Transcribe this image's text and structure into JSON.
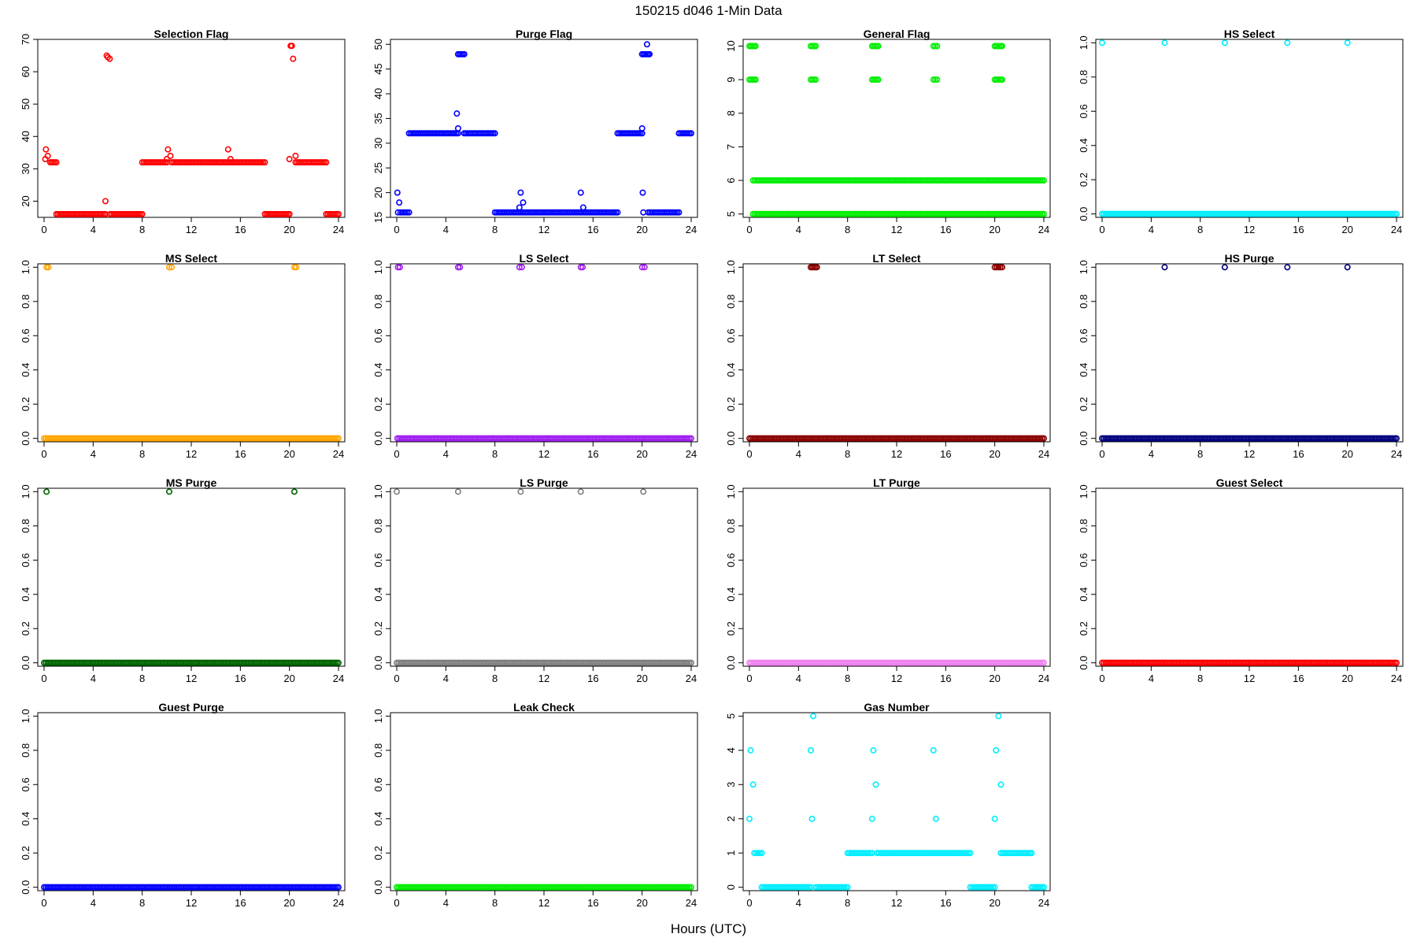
{
  "figure": {
    "title": "150215   d046   1-Min Data",
    "xlabel": "Hours (UTC)"
  },
  "x_ticks": [
    0,
    4,
    8,
    12,
    16,
    20,
    24
  ],
  "xlim": [
    0,
    24
  ],
  "chart_data": [
    {
      "type": "scatter",
      "title": "Selection Flag",
      "color": "#ff0000",
      "ylim": [
        15,
        70
      ],
      "yticks": [
        20,
        30,
        40,
        50,
        60,
        70
      ],
      "runs": [
        [
          0.5,
          1.0,
          32
        ],
        [
          1.0,
          5.0,
          16
        ],
        [
          5.4,
          8.0,
          16
        ],
        [
          8.0,
          10.0,
          32
        ],
        [
          10.4,
          18.0,
          32
        ],
        [
          18.0,
          20.0,
          16
        ],
        [
          20.5,
          23.0,
          32
        ],
        [
          23.0,
          24.0,
          16
        ]
      ],
      "points": [
        [
          0.1,
          33
        ],
        [
          0.15,
          36
        ],
        [
          0.3,
          34
        ],
        [
          5.0,
          20
        ],
        [
          5.1,
          65
        ],
        [
          5.2,
          64.5
        ],
        [
          5.35,
          64
        ],
        [
          10.0,
          33
        ],
        [
          10.1,
          36
        ],
        [
          10.3,
          34
        ],
        [
          15.0,
          36
        ],
        [
          15.2,
          33
        ],
        [
          20.0,
          33
        ],
        [
          20.1,
          68
        ],
        [
          20.2,
          68
        ],
        [
          20.3,
          64
        ],
        [
          20.5,
          34
        ]
      ]
    },
    {
      "type": "scatter",
      "title": "Purge Flag",
      "color": "#0000ff",
      "ylim": [
        15,
        51
      ],
      "yticks": [
        15,
        20,
        25,
        30,
        35,
        40,
        45,
        50
      ],
      "runs": [
        [
          0.3,
          1.0,
          16
        ],
        [
          1.0,
          5.0,
          32
        ],
        [
          5.0,
          5.5,
          48
        ],
        [
          5.5,
          8.0,
          32
        ],
        [
          8.0,
          18.0,
          16
        ],
        [
          18.0,
          20.0,
          32
        ],
        [
          20.0,
          20.5,
          48
        ],
        [
          20.5,
          23.0,
          16
        ],
        [
          23.0,
          24.0,
          32
        ]
      ],
      "points": [
        [
          0.05,
          20
        ],
        [
          0.2,
          18
        ],
        [
          0.1,
          16
        ],
        [
          4.9,
          36
        ],
        [
          5.0,
          33
        ],
        [
          10.0,
          17
        ],
        [
          10.1,
          20
        ],
        [
          10.3,
          18
        ],
        [
          15.0,
          20
        ],
        [
          15.2,
          17
        ],
        [
          20.0,
          33
        ],
        [
          20.05,
          20
        ],
        [
          20.1,
          16
        ],
        [
          20.4,
          50
        ],
        [
          20.6,
          48
        ]
      ]
    },
    {
      "type": "scatter",
      "title": "General Flag",
      "color": "#00ee00",
      "ylim": [
        4.9,
        10.2
      ],
      "yticks": [
        5,
        6,
        7,
        8,
        9,
        10
      ],
      "runs": [
        [
          0.3,
          24.0,
          5
        ],
        [
          0.3,
          24.0,
          6
        ],
        [
          0.0,
          0.5,
          10
        ],
        [
          0.0,
          0.5,
          9
        ],
        [
          5.0,
          5.4,
          10
        ],
        [
          5.0,
          5.4,
          9
        ],
        [
          10.0,
          10.5,
          10
        ],
        [
          10.0,
          10.5,
          9
        ],
        [
          15.0,
          15.3,
          10
        ],
        [
          15.0,
          15.3,
          9
        ],
        [
          20.0,
          20.5,
          10
        ],
        [
          20.0,
          20.5,
          9
        ]
      ],
      "points": [
        [
          20.6,
          10
        ],
        [
          20.6,
          9
        ]
      ]
    },
    {
      "type": "scatter",
      "title": "HS Select",
      "color": "#00eeff",
      "ylim": [
        -0.02,
        1.02
      ],
      "yticks": [
        0.0,
        0.2,
        0.4,
        0.6,
        0.8,
        1.0
      ],
      "runs": [
        [
          0.0,
          24.0,
          0
        ]
      ],
      "points": [
        [
          0.0,
          1
        ],
        [
          5.1,
          1
        ],
        [
          10.0,
          1
        ],
        [
          15.1,
          1
        ],
        [
          20.0,
          1
        ]
      ]
    },
    {
      "type": "scatter",
      "title": "MS Select",
      "color": "#ffa500",
      "ylim": [
        -0.02,
        1.02
      ],
      "yticks": [
        0.0,
        0.2,
        0.4,
        0.6,
        0.8,
        1.0
      ],
      "runs": [
        [
          0.0,
          24.0,
          0
        ]
      ],
      "points": [
        [
          0.2,
          1
        ],
        [
          0.35,
          1
        ],
        [
          10.2,
          1
        ],
        [
          10.4,
          1
        ],
        [
          20.4,
          1
        ],
        [
          20.55,
          1
        ]
      ]
    },
    {
      "type": "scatter",
      "title": "LS Select",
      "color": "#a020f0",
      "ylim": [
        -0.02,
        1.02
      ],
      "yticks": [
        0.0,
        0.2,
        0.4,
        0.6,
        0.8,
        1.0
      ],
      "runs": [
        [
          0.2,
          24.0,
          0
        ]
      ],
      "points": [
        [
          0.05,
          0
        ],
        [
          0.1,
          1
        ],
        [
          0.25,
          1
        ],
        [
          5.0,
          1
        ],
        [
          5.15,
          1
        ],
        [
          10.0,
          1
        ],
        [
          10.2,
          1
        ],
        [
          15.0,
          1
        ],
        [
          15.15,
          1
        ],
        [
          20.0,
          1
        ],
        [
          20.2,
          1
        ]
      ]
    },
    {
      "type": "scatter",
      "title": "LT Select",
      "color": "#8b0000",
      "ylim": [
        -0.02,
        1.02
      ],
      "yticks": [
        0.0,
        0.2,
        0.4,
        0.6,
        0.8,
        1.0
      ],
      "runs": [
        [
          0.0,
          24.0,
          0
        ],
        [
          5.0,
          5.5,
          1
        ],
        [
          20.0,
          20.6,
          1
        ]
      ],
      "points": []
    },
    {
      "type": "scatter",
      "title": "HS Purge",
      "color": "#000080",
      "ylim": [
        -0.02,
        1.02
      ],
      "yticks": [
        0.0,
        0.2,
        0.4,
        0.6,
        0.8,
        1.0
      ],
      "runs": [
        [
          0.0,
          24.0,
          0
        ]
      ],
      "points": [
        [
          5.1,
          1
        ],
        [
          10.0,
          1
        ],
        [
          15.1,
          1
        ],
        [
          20.0,
          1
        ]
      ]
    },
    {
      "type": "scatter",
      "title": "MS Purge",
      "color": "#006400",
      "ylim": [
        -0.02,
        1.02
      ],
      "yticks": [
        0.0,
        0.2,
        0.4,
        0.6,
        0.8,
        1.0
      ],
      "runs": [
        [
          0.0,
          24.0,
          0
        ]
      ],
      "points": [
        [
          0.2,
          1
        ],
        [
          10.2,
          1
        ],
        [
          20.4,
          1
        ]
      ]
    },
    {
      "type": "scatter",
      "title": "LS Purge",
      "color": "#808080",
      "ylim": [
        -0.02,
        1.02
      ],
      "yticks": [
        0.0,
        0.2,
        0.4,
        0.6,
        0.8,
        1.0
      ],
      "runs": [
        [
          0.0,
          24.0,
          0
        ]
      ],
      "points": [
        [
          0.0,
          1
        ],
        [
          5.0,
          1
        ],
        [
          10.1,
          1
        ],
        [
          15.0,
          1
        ],
        [
          20.1,
          1
        ]
      ]
    },
    {
      "type": "scatter",
      "title": "LT Purge",
      "color": "#ee82ee",
      "ylim": [
        -0.02,
        1.02
      ],
      "yticks": [
        0.0,
        0.2,
        0.4,
        0.6,
        0.8,
        1.0
      ],
      "runs": [
        [
          0.0,
          24.0,
          0
        ]
      ],
      "points": []
    },
    {
      "type": "scatter",
      "title": "Guest Select",
      "color": "#ff0000",
      "ylim": [
        -0.02,
        1.02
      ],
      "yticks": [
        0.0,
        0.2,
        0.4,
        0.6,
        0.8,
        1.0
      ],
      "runs": [
        [
          0.0,
          24.0,
          0
        ]
      ],
      "points": []
    },
    {
      "type": "scatter",
      "title": "Guest Purge",
      "color": "#0000ff",
      "ylim": [
        -0.02,
        1.02
      ],
      "yticks": [
        0.0,
        0.2,
        0.4,
        0.6,
        0.8,
        1.0
      ],
      "runs": [
        [
          0.0,
          24.0,
          0
        ]
      ],
      "points": []
    },
    {
      "type": "scatter",
      "title": "Leak Check",
      "color": "#00ee00",
      "ylim": [
        -0.02,
        1.02
      ],
      "yticks": [
        0.0,
        0.2,
        0.4,
        0.6,
        0.8,
        1.0
      ],
      "runs": [
        [
          0.0,
          24.0,
          0
        ]
      ],
      "points": []
    },
    {
      "type": "scatter",
      "title": "Gas Number",
      "color": "#00eeff",
      "ylim": [
        -0.1,
        5.1
      ],
      "yticks": [
        0,
        1,
        2,
        3,
        4,
        5
      ],
      "runs": [
        [
          0.4,
          1.0,
          1
        ],
        [
          1.0,
          5.0,
          0
        ],
        [
          5.4,
          8.0,
          0
        ],
        [
          8.0,
          10.0,
          1
        ],
        [
          10.4,
          18.0,
          1
        ],
        [
          18.0,
          20.0,
          0
        ],
        [
          20.5,
          23.0,
          1
        ],
        [
          23.0,
          24.0,
          0
        ]
      ],
      "points": [
        [
          0.0,
          2
        ],
        [
          0.1,
          4
        ],
        [
          0.3,
          3
        ],
        [
          5.0,
          4
        ],
        [
          5.1,
          2
        ],
        [
          5.2,
          5
        ],
        [
          10.0,
          2
        ],
        [
          10.1,
          4
        ],
        [
          10.3,
          3
        ],
        [
          15.0,
          4
        ],
        [
          15.2,
          2
        ],
        [
          20.0,
          2
        ],
        [
          20.1,
          4
        ],
        [
          20.3,
          5
        ],
        [
          20.5,
          3
        ]
      ]
    }
  ]
}
